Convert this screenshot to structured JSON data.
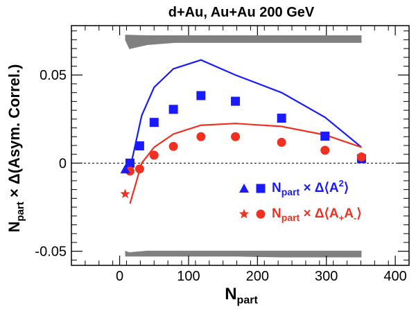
{
  "chart_data": {
    "type": "scatter",
    "title": "d+Au, Au+Au 200 GeV",
    "xlabel": {
      "main": "N",
      "sub": "part"
    },
    "ylabel": {
      "text": "N_part × Δ(Asym. Correl.)",
      "main": "N",
      "sub": "part",
      "rest": " × Δ(Asym. Correl.)"
    },
    "xlim": [
      -70,
      420
    ],
    "ylim": [
      -0.058,
      0.078
    ],
    "x_ticks": [
      0,
      100,
      200,
      300,
      400
    ],
    "x_tick_labels": [
      "0",
      "100",
      "200",
      "300",
      "400"
    ],
    "y_ticks": [
      -0.05,
      0,
      0.05
    ],
    "y_tick_labels": [
      "-0.05",
      "0",
      "0.05"
    ],
    "zero_line": true,
    "grid": false,
    "colors": {
      "blue": "#1a1aff",
      "red": "#f03020",
      "band": "#808080"
    },
    "series": [
      {
        "name": "N_part × Δ⟨A²⟩",
        "color": "#1a1aff",
        "marker": "square",
        "x": [
          15,
          29,
          50,
          78,
          118,
          168,
          235,
          298,
          351
        ],
        "y": [
          0.0,
          0.0098,
          0.0231,
          0.0305,
          0.0383,
          0.0351,
          0.0255,
          0.0153,
          0.0025
        ]
      },
      {
        "name": "N_part × Δ⟨A₊A₋⟩",
        "color": "#f03020",
        "marker": "circle",
        "x": [
          15,
          29,
          50,
          78,
          118,
          168,
          235,
          298,
          351
        ],
        "y": [
          -0.0045,
          -0.0033,
          0.0045,
          0.0095,
          0.015,
          0.015,
          0.0118,
          0.0073,
          0.0035
        ]
      }
    ],
    "extra_points": [
      {
        "series": "N_part × Δ⟨A²⟩",
        "marker": "triangle",
        "color": "#1a1aff",
        "x": 8,
        "y": -0.0035
      },
      {
        "series": "N_part × Δ⟨A₊A₋⟩",
        "marker": "star",
        "color": "#f03020",
        "x": 8,
        "y": -0.0175
      }
    ],
    "lines": [
      {
        "series": "N_part × Δ⟨A²⟩",
        "color": "#1a1aff",
        "x": [
          8,
          18,
          32,
          50,
          78,
          118,
          168,
          235,
          298,
          351
        ],
        "y": [
          -0.004,
          0.002,
          0.027,
          0.043,
          0.0535,
          0.0585,
          0.05,
          0.04,
          0.026,
          0.009
        ]
      },
      {
        "series": "N_part × Δ⟨A₊A₋⟩",
        "color": "#f03020",
        "x": [
          15,
          32,
          50,
          78,
          118,
          168,
          235,
          298,
          351
        ],
        "y": [
          -0.023,
          0.0,
          0.009,
          0.0165,
          0.0215,
          0.0225,
          0.0208,
          0.016,
          0.009
        ]
      }
    ],
    "bands": [
      {
        "upper_x": [
          8,
          14,
          40,
          80,
          120,
          170,
          235,
          300,
          351
        ],
        "upper_y": [
          0.0728,
          0.0728,
          0.0725,
          0.0725,
          0.0725,
          0.0725,
          0.0725,
          0.0725,
          0.0725
        ],
        "lower_x": [
          351,
          300,
          235,
          170,
          120,
          80,
          40,
          14,
          8
        ],
        "lower_y": [
          0.0682,
          0.0682,
          0.0682,
          0.0682,
          0.0682,
          0.0682,
          0.067,
          0.0647,
          0.0697
        ]
      },
      {
        "upper_x": [
          8,
          14,
          40,
          80,
          120,
          170,
          235,
          300,
          351
        ],
        "upper_y": [
          -0.0497,
          -0.0506,
          -0.0497,
          -0.0497,
          -0.0497,
          -0.0497,
          -0.0497,
          -0.0497,
          -0.0497
        ],
        "lower_x": [
          351,
          300,
          235,
          170,
          120,
          80,
          40,
          14,
          8
        ],
        "lower_y": [
          -0.0535,
          -0.0535,
          -0.0535,
          -0.053,
          -0.053,
          -0.053,
          -0.053,
          -0.053,
          -0.053
        ]
      }
    ],
    "legend": {
      "placement": "right-middle",
      "entries": [
        {
          "markers": [
            "triangle",
            "square"
          ],
          "color": "#1a1aff",
          "main": "N",
          "sub": "part",
          "mid": " × Δ⟨A",
          "sup": "2",
          "end": "⟩"
        },
        {
          "markers": [
            "star",
            "circle"
          ],
          "color": "#f03020",
          "main": "N",
          "sub": "part",
          "mid": " × Δ⟨A",
          "sub2": "+",
          "mid2": "A",
          "sub3": "-",
          "end": "⟩"
        }
      ]
    }
  }
}
